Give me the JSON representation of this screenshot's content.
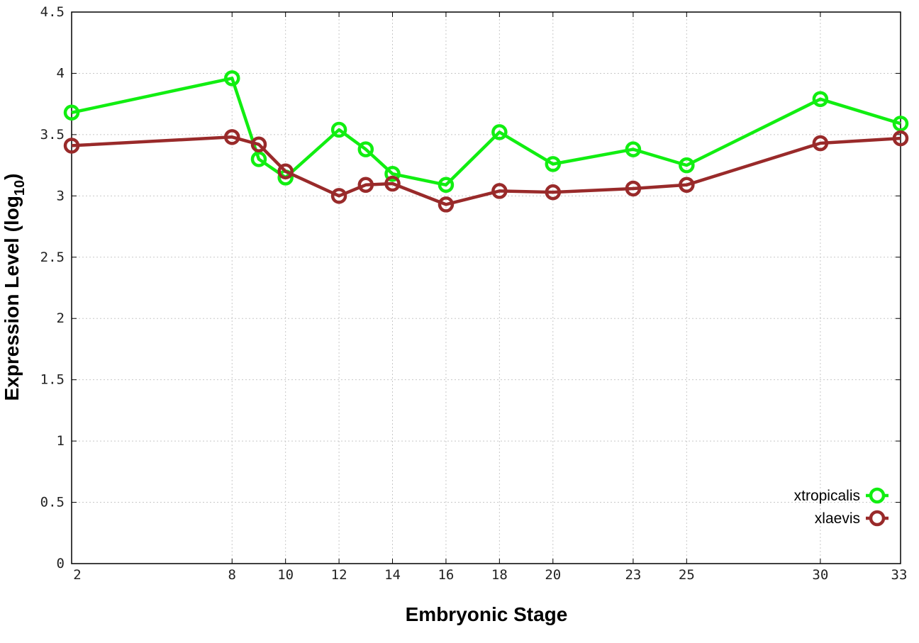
{
  "chart_data": {
    "type": "line",
    "xlabel": "Embryonic Stage",
    "ylabel_main": "Expression Level (log",
    "ylabel_sub": "10",
    "ylabel_close": ")",
    "x": [
      2,
      8,
      9,
      10,
      12,
      13,
      14,
      16,
      18,
      20,
      23,
      25,
      30,
      33
    ],
    "x_ticks": [
      2,
      8,
      10,
      12,
      14,
      16,
      18,
      20,
      23,
      25,
      30,
      33
    ],
    "y_ticks": [
      "0",
      "0.5",
      "1",
      "1.5",
      "2",
      "2.5",
      "3",
      "3.5",
      "4",
      "4.5"
    ],
    "xlim": [
      2,
      33
    ],
    "ylim": [
      0,
      4.5
    ],
    "grid": true,
    "legend_position": "bottom-right",
    "series": [
      {
        "name": "xtropicalis",
        "color": "#11ee11",
        "values": [
          3.68,
          3.96,
          3.3,
          3.15,
          3.54,
          3.38,
          3.18,
          3.09,
          3.52,
          3.26,
          3.38,
          3.25,
          3.79,
          3.59
        ]
      },
      {
        "name": "xlaevis",
        "color": "#992a2a",
        "values": [
          3.41,
          3.48,
          3.42,
          3.2,
          3.0,
          3.09,
          3.1,
          2.93,
          3.04,
          3.03,
          3.06,
          3.09,
          3.43,
          3.47
        ]
      }
    ]
  }
}
